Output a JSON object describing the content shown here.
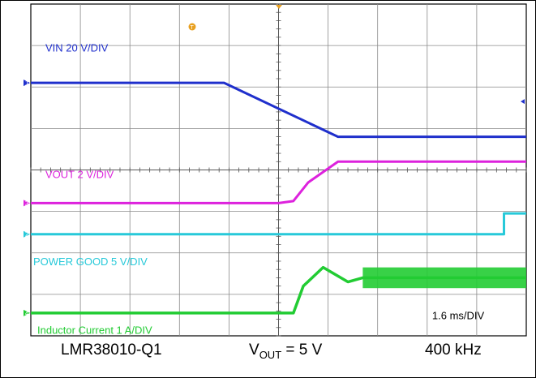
{
  "chart_data": {
    "type": "line",
    "time_scale": "1.6 ms/DIV",
    "divisions": {
      "x": 10,
      "y": 8
    },
    "series": [
      {
        "name": "VIN 20 V/DIV",
        "channel": "1",
        "color": "#1f2fcc",
        "points": [
          [
            0,
            1.9
          ],
          [
            3.9,
            1.9
          ],
          [
            6.2,
            3.2
          ],
          [
            10,
            3.2
          ]
        ]
      },
      {
        "name": "VOUT  2 V/DIV",
        "channel": "3",
        "color": "#dd22dd",
        "points": [
          [
            0,
            4.8
          ],
          [
            5.0,
            4.8
          ],
          [
            5.3,
            4.75
          ],
          [
            5.6,
            4.3
          ],
          [
            6.2,
            3.8
          ],
          [
            10,
            3.8
          ]
        ]
      },
      {
        "name": "POWER GOOD  5 V/DIV",
        "channel": "2",
        "color": "#27c9d9",
        "points": [
          [
            0,
            5.55
          ],
          [
            9.55,
            5.55
          ],
          [
            9.55,
            5.05
          ],
          [
            10,
            5.05
          ]
        ]
      },
      {
        "name": "Inductor Current  1 A/DIV",
        "channel": "4",
        "color": "#22cc33",
        "points": [
          [
            0,
            7.45
          ],
          [
            5.3,
            7.45
          ],
          [
            5.5,
            6.8
          ],
          [
            5.9,
            6.35
          ],
          [
            6.4,
            6.7
          ],
          [
            6.7,
            6.6
          ],
          [
            10,
            6.6
          ]
        ]
      }
    ]
  },
  "caption": {
    "part": "LMR38010-Q1",
    "vout_prefix": "V",
    "vout_sub": "OUT",
    "vout_suffix": " = 5 V",
    "freq": "400 kHz"
  },
  "markers": {
    "trigger": "T"
  }
}
